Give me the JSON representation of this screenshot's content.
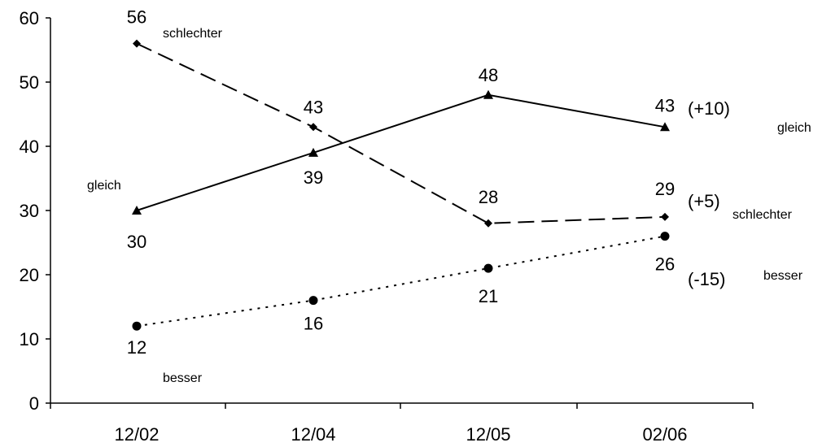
{
  "chart_data": {
    "type": "line",
    "categories": [
      "12/02",
      "12/04",
      "12/05",
      "02/06"
    ],
    "ylim": [
      0,
      60
    ],
    "yticks": [
      0,
      10,
      20,
      30,
      40,
      50,
      60
    ],
    "grid": false,
    "legend": "none",
    "series": [
      {
        "key": "schlechter",
        "values": [
          56,
          43,
          28,
          29
        ],
        "labels": [
          "56",
          "43",
          "28",
          "29"
        ],
        "line_style": "dashed",
        "marker": "diamond",
        "start_label": "schlechter",
        "end_label": "schlechter",
        "change": "(+5)"
      },
      {
        "key": "gleich",
        "values": [
          30,
          39,
          48,
          43
        ],
        "labels": [
          "30",
          "39",
          "48",
          "43"
        ],
        "line_style": "solid",
        "marker": "triangle",
        "start_label": "gleich",
        "end_label": "gleich",
        "change": "(+10)"
      },
      {
        "key": "besser",
        "values": [
          12,
          16,
          21,
          26
        ],
        "labels": [
          "12",
          "16",
          "21",
          "26"
        ],
        "line_style": "dotted",
        "marker": "circle",
        "start_label": "besser",
        "end_label": "besser",
        "change": "(-15)"
      }
    ]
  }
}
